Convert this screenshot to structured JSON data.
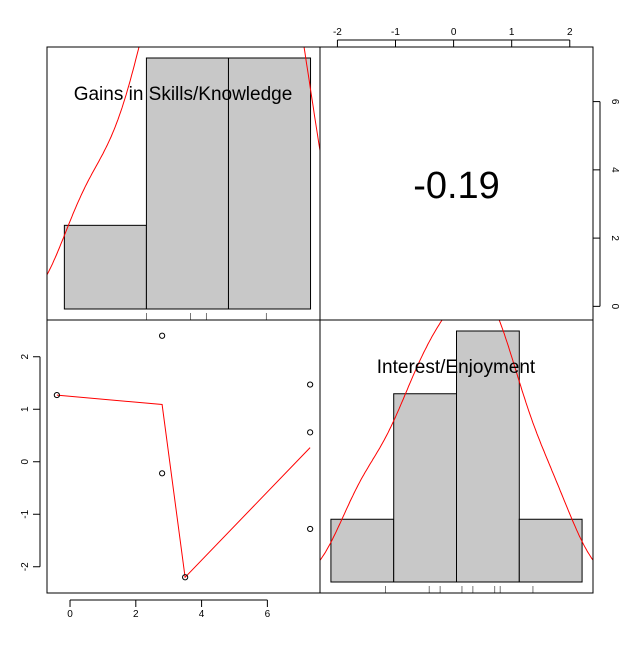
{
  "chart_data": [
    {
      "panel": "top-left",
      "type": "bar",
      "subtype": "histogram",
      "label": "Gains in Skills/Knowledge",
      "bins": [
        [
          -0.5,
          2.1
        ],
        [
          2.1,
          4.7
        ],
        [
          4.7,
          7.3
        ]
      ],
      "counts": [
        2,
        6,
        6
      ],
      "density_curve": true,
      "rug": [
        2.1,
        3.5,
        4.0,
        5.9
      ],
      "colors": {
        "bar_fill": "#c8c8c8",
        "bar_stroke": "#000000",
        "curve": "#ff0000"
      }
    },
    {
      "panel": "top-right",
      "type": "table",
      "value_text": "-0.19",
      "x_axis": {
        "position": "top",
        "range": [
          -2.3,
          2.4
        ],
        "ticks": [
          -2,
          -1,
          0,
          1,
          2
        ],
        "tick_labels": [
          "-2",
          "-1",
          "0",
          "1",
          "2"
        ]
      },
      "y_axis": {
        "position": "right",
        "range": [
          -0.4,
          7.6
        ],
        "ticks": [
          0,
          2,
          4,
          6
        ],
        "tick_labels": [
          "0",
          "2",
          "4",
          "6"
        ]
      }
    },
    {
      "panel": "bottom-left",
      "type": "scatter",
      "points": [
        {
          "x": -0.4,
          "y": 1.27
        },
        {
          "x": 2.8,
          "y": 2.4
        },
        {
          "x": 2.8,
          "y": -0.22
        },
        {
          "x": 3.5,
          "y": -2.2
        },
        {
          "x": 7.3,
          "y": 1.47
        },
        {
          "x": 7.3,
          "y": 0.56
        },
        {
          "x": 7.3,
          "y": -1.28
        }
      ],
      "smooth_line": [
        {
          "x": -0.4,
          "y": 1.27
        },
        {
          "x": 2.8,
          "y": 1.09
        },
        {
          "x": 3.5,
          "y": -2.2
        },
        {
          "x": 7.3,
          "y": 0.27
        }
      ],
      "x_axis": {
        "position": "bottom",
        "range": [
          -0.7,
          7.6
        ],
        "ticks": [
          0,
          2,
          4,
          6
        ],
        "tick_labels": [
          "0",
          "2",
          "4",
          "6"
        ]
      },
      "y_axis": {
        "position": "left",
        "range": [
          -2.5,
          2.7
        ],
        "ticks": [
          -2,
          -1,
          0,
          1,
          2
        ],
        "tick_labels": [
          "-2",
          "-1",
          "0",
          "1",
          "2"
        ]
      },
      "colors": {
        "point": "#000000",
        "line": "#ff0000"
      }
    },
    {
      "panel": "bottom-right",
      "type": "bar",
      "subtype": "histogram",
      "label": "Interest/Enjoyment",
      "bins": [
        [
          -2.2,
          -1.05
        ],
        [
          -1.05,
          0.1
        ],
        [
          0.1,
          1.25
        ],
        [
          1.25,
          2.4
        ]
      ],
      "counts": [
        1,
        3,
        4,
        1
      ],
      "density_curve": true,
      "rug": [
        -1.2,
        -0.4,
        -0.2,
        0.2,
        0.4,
        0.8,
        0.9,
        1.5
      ],
      "colors": {
        "bar_fill": "#c8c8c8",
        "bar_stroke": "#000000",
        "curve": "#ff0000"
      }
    }
  ]
}
